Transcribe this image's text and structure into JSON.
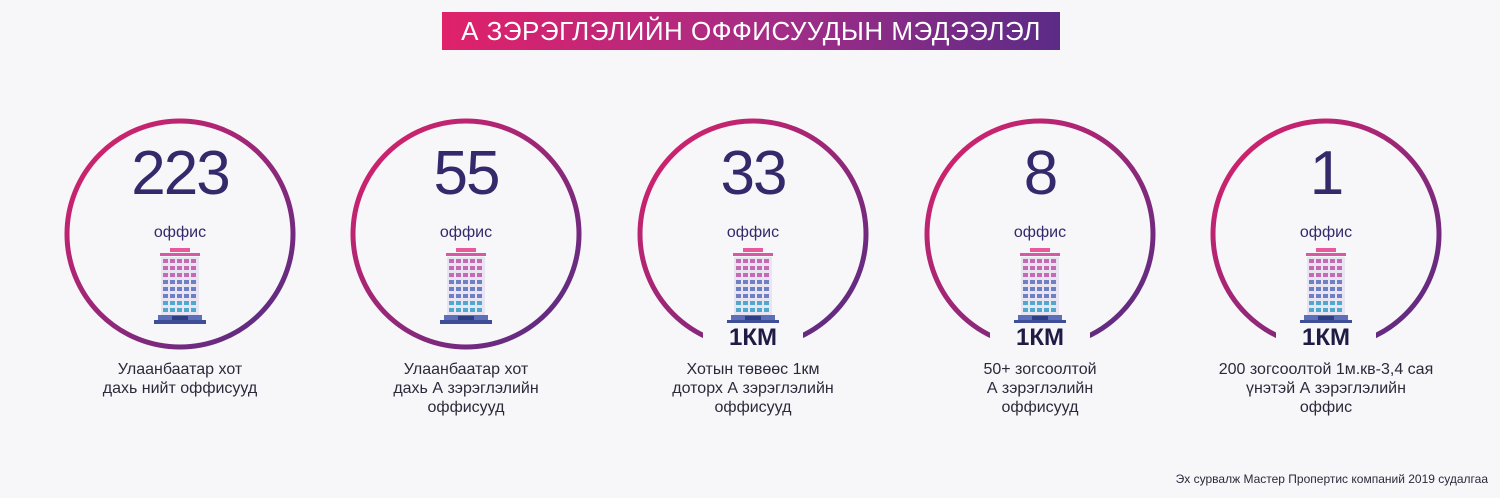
{
  "title": "А ЗЭРЭГЛЭЛИЙН ОФФИСУУДЫН МЭДЭЭЛЭЛ",
  "colors": {
    "gradient_start": "#e0216a",
    "gradient_end": "#4e2d85",
    "number": "#33296b"
  },
  "building_icon": "office-building-icon",
  "stats": [
    {
      "value": "223",
      "unit": "оффис",
      "badge": "",
      "caption": "Улаанбаатар хот\nдахь нийт оффисууд"
    },
    {
      "value": "55",
      "unit": "оффис",
      "badge": "",
      "caption": "Улаанбаатар хот\nдахь  А  зэрэглэлийн\nоффисууд"
    },
    {
      "value": "33",
      "unit": "оффис",
      "badge": "1КМ",
      "caption": "Хотын төвөөс 1км\nдоторх А зэрэглэлийн\nоффисууд"
    },
    {
      "value": "8",
      "unit": "оффис",
      "badge": "1КМ",
      "caption": "50+ зогсоолтой\nА зэрэглэлийн\nоффисууд"
    },
    {
      "value": "1",
      "unit": "оффис",
      "badge": "1КМ",
      "caption": "200 зогсоолтой 1м.кв-3,4 сая\nүнэтэй А зэрэглэлийн\nоффис"
    }
  ],
  "source": "Эх сурвалж Мастер Пропертис компаний 2019 судалгаа"
}
